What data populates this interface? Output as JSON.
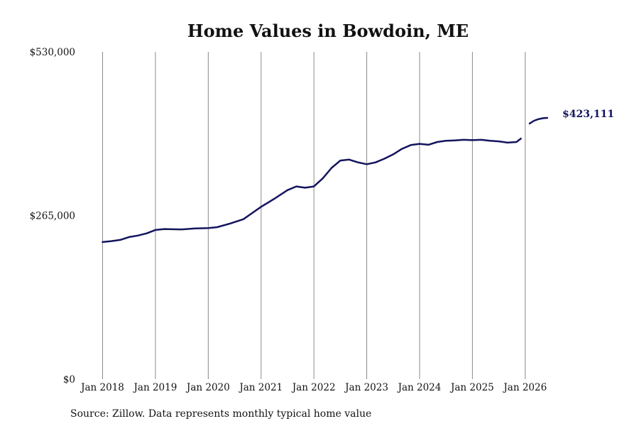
{
  "chart_data": {
    "type": "line",
    "title": "Home Values in Bowdoin, ME",
    "source": "Source: Zillow. Data represents monthly typical home value",
    "ylim": [
      0,
      530000
    ],
    "yticks": [
      {
        "value": 0,
        "label": "$0"
      },
      {
        "value": 265000,
        "label": "$265,000"
      },
      {
        "value": 530000,
        "label": "$530,000"
      }
    ],
    "xlim": [
      "2018-01",
      "2026-07"
    ],
    "xticks": [
      {
        "date": "2018-01",
        "label": "Jan 2018"
      },
      {
        "date": "2019-01",
        "label": "Jan 2019"
      },
      {
        "date": "2020-01",
        "label": "Jan 2020"
      },
      {
        "date": "2021-01",
        "label": "Jan 2021"
      },
      {
        "date": "2022-01",
        "label": "Jan 2022"
      },
      {
        "date": "2023-01",
        "label": "Jan 2023"
      },
      {
        "date": "2024-01",
        "label": "Jan 2024"
      },
      {
        "date": "2025-01",
        "label": "Jan 2025"
      },
      {
        "date": "2026-01",
        "label": "Jan 2026"
      }
    ],
    "grid": "vertical",
    "colors": {
      "series": "#14145e",
      "grid": "#8a8a8a"
    },
    "end_label": "$423,111",
    "series": [
      {
        "segments": [
          [
            [
              "2018-01",
              222000
            ],
            [
              "2018-03",
              223500
            ],
            [
              "2018-05",
              225500
            ],
            [
              "2018-07",
              230000
            ],
            [
              "2018-09",
              232500
            ],
            [
              "2018-11",
              236000
            ],
            [
              "2019-01",
              241500
            ],
            [
              "2019-03",
              243000
            ],
            [
              "2019-07",
              242500
            ],
            [
              "2019-10",
              244000
            ],
            [
              "2020-01",
              244500
            ],
            [
              "2020-03",
              246000
            ],
            [
              "2020-06",
              252000
            ],
            [
              "2020-09",
              259000
            ],
            [
              "2020-11",
              269000
            ],
            [
              "2021-01",
              279000
            ],
            [
              "2021-04",
              292000
            ],
            [
              "2021-07",
              306000
            ],
            [
              "2021-09",
              312000
            ],
            [
              "2021-11",
              310000
            ],
            [
              "2022-01",
              312000
            ],
            [
              "2022-03",
              325000
            ],
            [
              "2022-05",
              342000
            ],
            [
              "2022-07",
              354000
            ],
            [
              "2022-09",
              355500
            ],
            [
              "2022-11",
              351000
            ],
            [
              "2023-01",
              348000
            ],
            [
              "2023-03",
              351000
            ],
            [
              "2023-05",
              357000
            ],
            [
              "2023-07",
              364000
            ],
            [
              "2023-09",
              373000
            ],
            [
              "2023-11",
              379000
            ],
            [
              "2024-01",
              381000
            ],
            [
              "2024-03",
              379500
            ],
            [
              "2024-05",
              384000
            ],
            [
              "2024-07",
              386000
            ],
            [
              "2024-09",
              386500
            ],
            [
              "2024-11",
              387500
            ],
            [
              "2025-01",
              387000
            ],
            [
              "2025-03",
              387500
            ],
            [
              "2025-05",
              386000
            ],
            [
              "2025-07",
              385000
            ],
            [
              "2025-09",
              383000
            ],
            [
              "2025-11",
              384000
            ],
            [
              "2025-12",
              389500
            ]
          ],
          [
            [
              "2026-02",
              414000
            ],
            [
              "2026-03",
              418500
            ],
            [
              "2026-04",
              421000
            ],
            [
              "2026-05",
              422500
            ],
            [
              "2026-06",
              423111
            ]
          ]
        ]
      }
    ]
  }
}
